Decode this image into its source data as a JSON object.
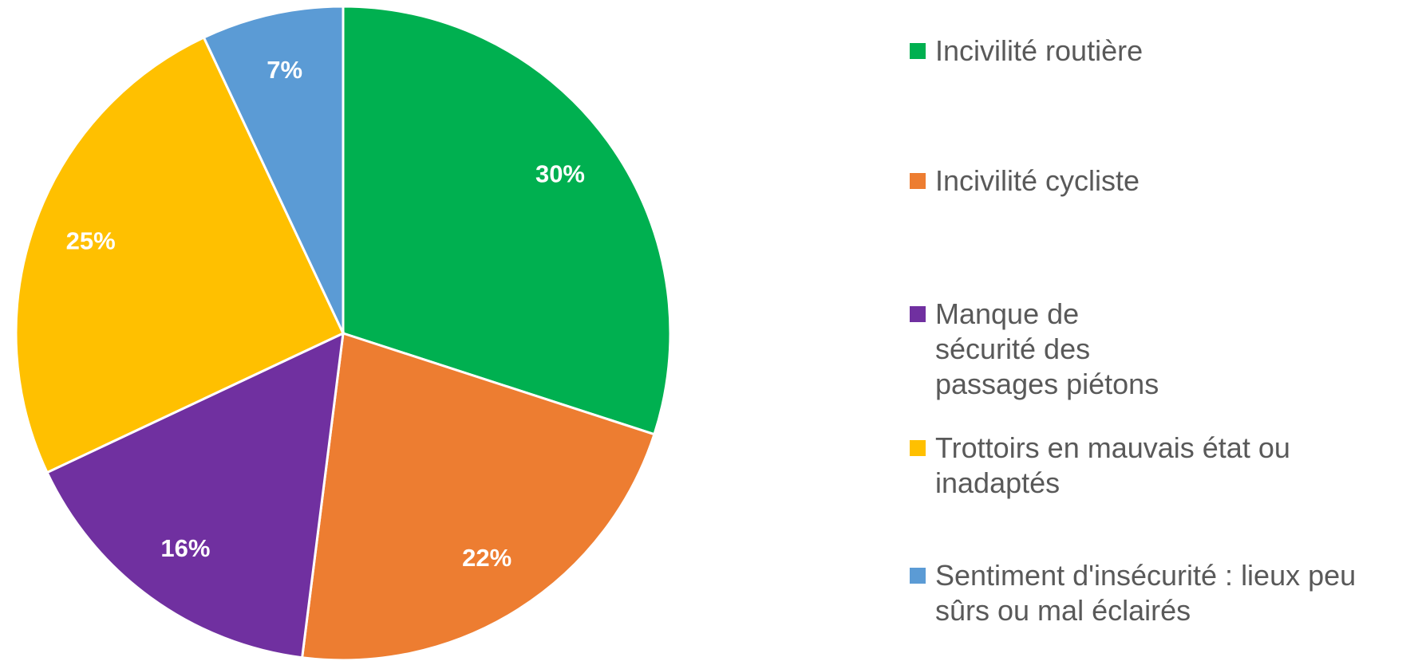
{
  "chart_data": {
    "type": "pie",
    "categories": [
      "Incivilité routière",
      "Incivilité cycliste",
      "Manque de sécurité des passages piétons",
      "Trottoirs en mauvais état ou inadaptés",
      "Sentiment d'insécurité : lieux peu sûrs ou mal éclairés"
    ],
    "values": [
      30,
      22,
      16,
      25,
      7
    ],
    "value_labels": [
      "30%",
      "22%",
      "16%",
      "25%",
      "7%"
    ],
    "colors": [
      "#00b050",
      "#ed7d31",
      "#7030a0",
      "#ffc000",
      "#5b9bd5"
    ],
    "legend": "right"
  }
}
